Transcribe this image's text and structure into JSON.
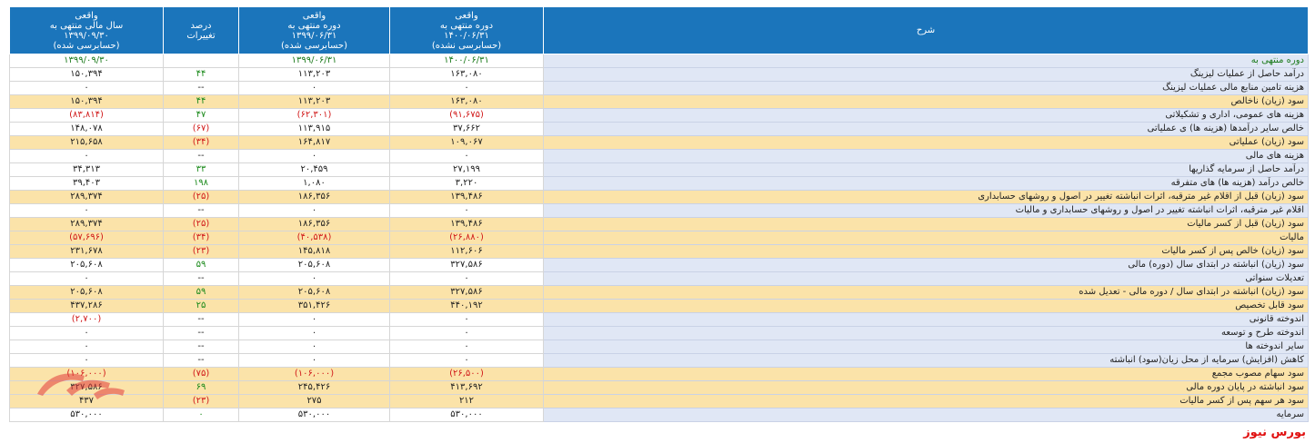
{
  "header": {
    "col_yearly": "واقعی\nسال مالی منتهی به\n۱۳۹۹/۰۹/۳۰\n(حسابرسی شده)",
    "col_change": "درصد\nتغییرات",
    "col_prev": "واقعی\nدوره منتهی به\n۱۳۹۹/۰۶/۳۱\n(حسابرسی شده)",
    "col_curr": "واقعی\nدوره منتهی به\n۱۴۰۰/۰۶/۳۱\n(حسابرسی نشده)",
    "col_desc": "شرح"
  },
  "rows": [
    {
      "desc": "دوره منتهی به",
      "curr": "۱۴۰۰/۰۶/۳۱",
      "prev": "۱۳۹۹/۰۶/۳۱",
      "change": "",
      "yearly": "۱۳۹۹/۰۹/۳۰"
    },
    {
      "desc": "درآمد حاصل از عملیات لیزینگ",
      "curr": "۱۶۳,۰۸۰",
      "prev": "۱۱۳,۲۰۳",
      "change": "۴۴",
      "yearly": "۱۵۰,۳۹۴"
    },
    {
      "desc": "هزینه تامین منابع مالی عملیات لیزینگ",
      "curr": "۰",
      "prev": "۰",
      "change": "--",
      "yearly": "۰"
    },
    {
      "desc": "سود (زیان) ناخالص",
      "curr": "۱۶۳,۰۸۰",
      "prev": "۱۱۳,۲۰۳",
      "change": "۴۴",
      "yearly": "۱۵۰,۳۹۴"
    },
    {
      "desc": "هزینه های عمومی، اداری و تشکیلاتی",
      "curr": "(۹۱,۶۷۵)",
      "prev": "(۶۲,۳۰۱)",
      "change": "۴۷",
      "yearly": "(۸۳,۸۱۴)"
    },
    {
      "desc": "خالص سایر درآمدها (هزینه ها) ی عملیاتی",
      "curr": "۳۷,۶۶۲",
      "prev": "۱۱۳,۹۱۵",
      "change": "(۶۷)",
      "yearly": "۱۴۸,۰۷۸"
    },
    {
      "desc": "سود (زیان) عملیاتی",
      "curr": "۱۰۹,۰۶۷",
      "prev": "۱۶۴,۸۱۷",
      "change": "(۳۴)",
      "yearly": "۲۱۵,۶۵۸"
    },
    {
      "desc": "هزینه های مالی",
      "curr": "۰",
      "prev": "۰",
      "change": "--",
      "yearly": "۰"
    },
    {
      "desc": "درآمد حاصل از سرمایه گذاریها",
      "curr": "۲۷,۱۹۹",
      "prev": "۲۰,۴۵۹",
      "change": "۳۳",
      "yearly": "۳۴,۳۱۳"
    },
    {
      "desc": "خالص درآمد (هزینه ها) های متفرقه",
      "curr": "۳,۲۲۰",
      "prev": "۱,۰۸۰",
      "change": "۱۹۸",
      "yearly": "۳۹,۴۰۳"
    },
    {
      "desc": "سود (زیان) قبل از اقلام غیر مترقبه، اثرات انباشته تغییر در اصول و روشهای حسابداری",
      "curr": "۱۳۹,۴۸۶",
      "prev": "۱۸۶,۳۵۶",
      "change": "(۲۵)",
      "yearly": "۲۸۹,۳۷۴"
    },
    {
      "desc": "اقلام غیر مترقبه، اثرات انباشته تغییر در اصول و روشهای حسابداری و مالیات",
      "curr": "۰",
      "prev": "۰",
      "change": "--",
      "yearly": "۰"
    },
    {
      "desc": "سود (زیان) قبل از کسر مالیات",
      "curr": "۱۳۹,۴۸۶",
      "prev": "۱۸۶,۳۵۶",
      "change": "(۲۵)",
      "yearly": "۲۸۹,۳۷۴"
    },
    {
      "desc": "مالیات",
      "curr": "(۲۶,۸۸۰)",
      "prev": "(۴۰,۵۳۸)",
      "change": "(۳۴)",
      "yearly": "(۵۷,۶۹۶)"
    },
    {
      "desc": "سود (زیان) خالص پس از کسر مالیات",
      "curr": "۱۱۲,۶۰۶",
      "prev": "۱۴۵,۸۱۸",
      "change": "(۲۳)",
      "yearly": "۲۳۱,۶۷۸"
    },
    {
      "desc": "سود (زیان) انباشته در ابتدای سال (دوره) مالی",
      "curr": "۳۲۷,۵۸۶",
      "prev": "۲۰۵,۶۰۸",
      "change": "۵۹",
      "yearly": "۲۰۵,۶۰۸"
    },
    {
      "desc": "تعدیلات سنواتی",
      "curr": "۰",
      "prev": "۰",
      "change": "--",
      "yearly": "۰"
    },
    {
      "desc": "سود (زیان) انباشته در ابتدای سال / دوره مالی - تعدیل شده",
      "curr": "۳۲۷,۵۸۶",
      "prev": "۲۰۵,۶۰۸",
      "change": "۵۹",
      "yearly": "۲۰۵,۶۰۸"
    },
    {
      "desc": "سود قابل تخصیص",
      "curr": "۴۴۰,۱۹۲",
      "prev": "۳۵۱,۴۲۶",
      "change": "۲۵",
      "yearly": "۴۳۷,۲۸۶"
    },
    {
      "desc": "اندوخته قانونی",
      "curr": "۰",
      "prev": "۰",
      "change": "--",
      "yearly": "(۲,۷۰۰)"
    },
    {
      "desc": "اندوخته طرح و توسعه",
      "curr": "۰",
      "prev": "۰",
      "change": "--",
      "yearly": "۰"
    },
    {
      "desc": "سایر اندوخته ها",
      "curr": "۰",
      "prev": "۰",
      "change": "--",
      "yearly": "۰"
    },
    {
      "desc": "کاهش (افزایش) سرمایه از محل زیان(سود) انباشته",
      "curr": "۰",
      "prev": "۰",
      "change": "--",
      "yearly": "۰"
    },
    {
      "desc": "سود سهام مصوب مجمع",
      "curr": "(۲۶,۵۰۰)",
      "prev": "(۱۰۶,۰۰۰)",
      "change": "(۷۵)",
      "yearly": "(۱۰۶,۰۰۰)"
    },
    {
      "desc": "سود انباشته در پایان دوره مالی",
      "curr": "۴۱۳,۶۹۲",
      "prev": "۲۴۵,۴۲۶",
      "change": "۶۹",
      "yearly": "۳۲۷,۵۸۶"
    },
    {
      "desc": "سود هر سهم پس از کسر مالیات",
      "curr": "۲۱۲",
      "prev": "۲۷۵",
      "change": "(۲۳)",
      "yearly": "۴۳۷"
    },
    {
      "desc": "سرمایه",
      "curr": "۵۳۰,۰۰۰",
      "prev": "۵۳۰,۰۰۰",
      "change": "۰",
      "yearly": "۵۳۰,۰۰۰"
    }
  ],
  "watermark": {
    "brand": "بورس نیوز"
  },
  "colors": {
    "header": "#1b75bb",
    "highlight": "#fbe3a9",
    "desc_bg": "#e0e7f5",
    "negative": "#d11a1a",
    "positive": "#1b8a1b"
  }
}
